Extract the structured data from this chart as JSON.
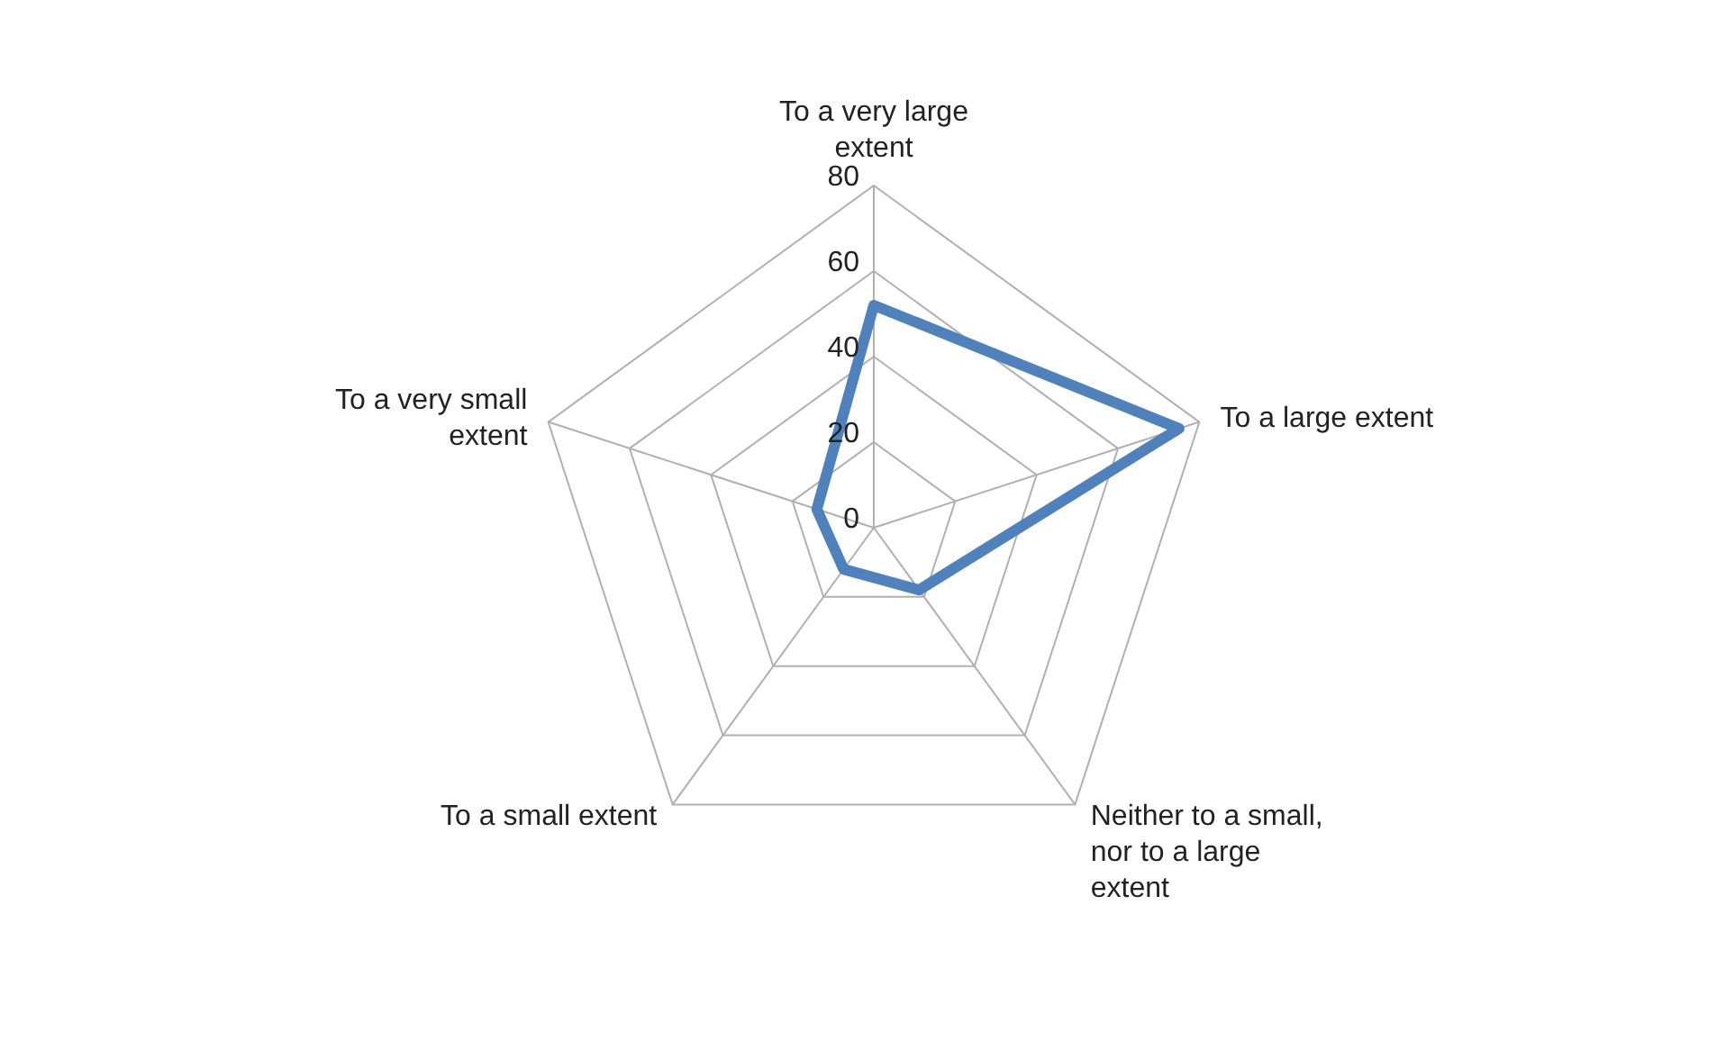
{
  "chart_data": {
    "type": "radar",
    "categories": [
      "To a very large extent",
      "To a large extent",
      "Neither to a small, nor to a large extent",
      "To a small extent",
      "To a very small extent"
    ],
    "series": [
      {
        "color": "#4f81bd",
        "values": [
          52,
          75,
          18,
          12,
          14
        ]
      }
    ],
    "ylim": [
      0,
      80
    ],
    "yticks": [
      0,
      20,
      40,
      60,
      80
    ],
    "grid": true,
    "marker": "none"
  }
}
